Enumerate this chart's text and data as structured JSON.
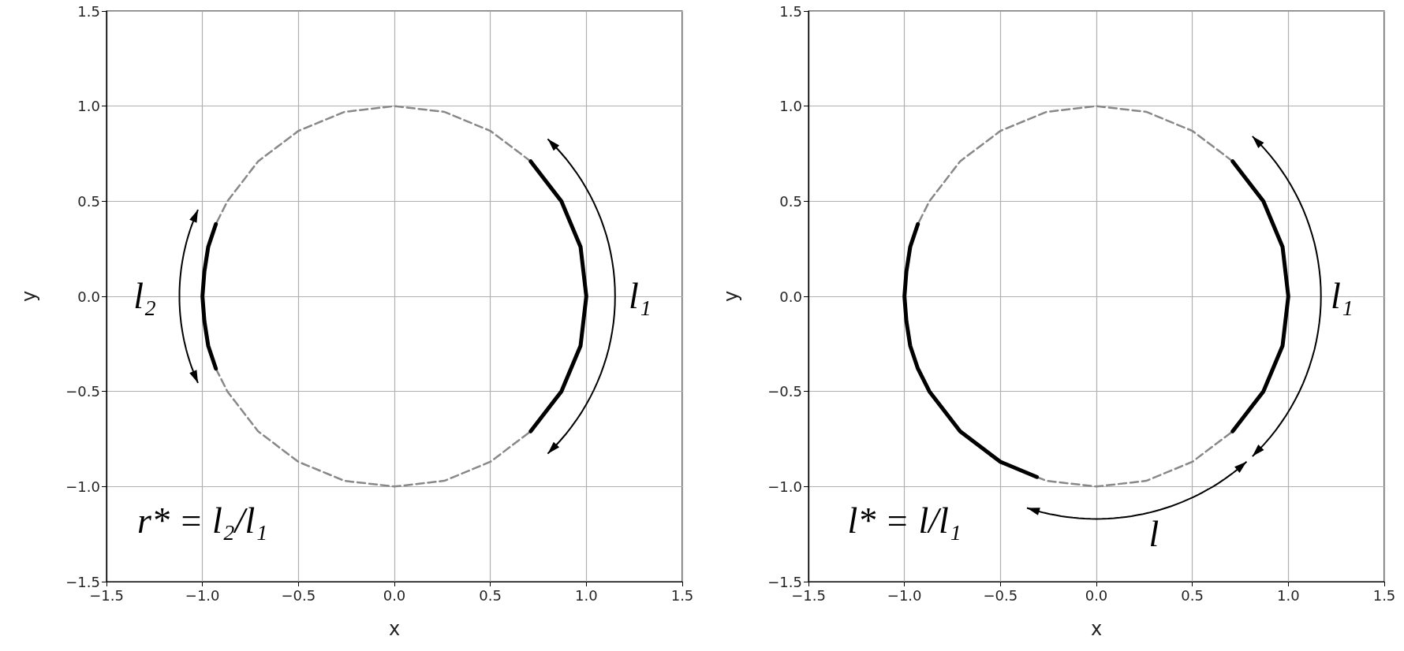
{
  "chart_data": [
    {
      "type": "line",
      "xlabel": "x",
      "ylabel": "y",
      "xlim": [
        -1.5,
        1.5
      ],
      "ylim": [
        -1.5,
        1.5
      ],
      "xticks": [
        {
          "value": -1.5,
          "label": "−1.5"
        },
        {
          "value": -1,
          "label": "−1.0"
        },
        {
          "value": -0.5,
          "label": "−0.5"
        },
        {
          "value": 0,
          "label": "0.0"
        },
        {
          "value": 0.5,
          "label": "0.5"
        },
        {
          "value": 1,
          "label": "1.0"
        },
        {
          "value": 1.5,
          "label": "1.5"
        }
      ],
      "yticks": [
        {
          "value": -1.5,
          "label": "−1.5"
        },
        {
          "value": -1,
          "label": "−1.0"
        },
        {
          "value": -0.5,
          "label": "−0.5"
        },
        {
          "value": 0,
          "label": "0.0"
        },
        {
          "value": 0.5,
          "label": "0.5"
        },
        {
          "value": 1,
          "label": "1.0"
        },
        {
          "value": 1.5,
          "label": "1.5"
        }
      ],
      "grid": true,
      "marker": "none",
      "series": [
        {
          "color": "#888888",
          "line_style": "dashed",
          "x": [
            0.71,
            0.5,
            0.26,
            0,
            -0.26,
            -0.5,
            -0.71,
            -0.87,
            -0.93
          ],
          "values": [
            0.71,
            0.87,
            0.97,
            1,
            0.97,
            0.87,
            0.71,
            0.5,
            0.38
          ]
        },
        {
          "color": "#888888",
          "line_style": "dashed",
          "x": [
            -0.93,
            -0.87,
            -0.71,
            -0.5,
            -0.26,
            0,
            0.26,
            0.5,
            0.71
          ],
          "values": [
            -0.38,
            -0.5,
            -0.71,
            -0.87,
            -0.97,
            -1,
            -0.97,
            -0.87,
            -0.71
          ]
        },
        {
          "color": "#000000",
          "line_style": "solid",
          "x": [
            0.71,
            0.87,
            0.97,
            1,
            0.97,
            0.87,
            0.71
          ],
          "values": [
            -0.71,
            -0.5,
            -0.26,
            0,
            0.26,
            0.5,
            0.71
          ]
        },
        {
          "color": "#000000",
          "line_style": "solid",
          "x": [
            -0.93,
            -0.97,
            -0.99,
            -1,
            -0.99,
            -0.97,
            -0.93
          ],
          "values": [
            0.38,
            0.26,
            0.13,
            0,
            -0.13,
            -0.26,
            -0.38
          ]
        }
      ],
      "annotations": [
        "l₂",
        "l₁",
        "r* = l₂/l₁"
      ]
    },
    {
      "type": "line",
      "xlabel": "x",
      "ylabel": "y",
      "xlim": [
        -1.5,
        1.5
      ],
      "ylim": [
        -1.5,
        1.5
      ],
      "xticks": [
        {
          "value": -1.5,
          "label": "−1.5"
        },
        {
          "value": -1,
          "label": "−1.0"
        },
        {
          "value": -0.5,
          "label": "−0.5"
        },
        {
          "value": 0,
          "label": "0.0"
        },
        {
          "value": 0.5,
          "label": "0.5"
        },
        {
          "value": 1,
          "label": "1.0"
        },
        {
          "value": 1.5,
          "label": "1.5"
        }
      ],
      "yticks": [
        {
          "value": -1.5,
          "label": "−1.5"
        },
        {
          "value": -1,
          "label": "−1.0"
        },
        {
          "value": -0.5,
          "label": "−0.5"
        },
        {
          "value": 0,
          "label": "0.0"
        },
        {
          "value": 0.5,
          "label": "0.5"
        },
        {
          "value": 1,
          "label": "1.0"
        },
        {
          "value": 1.5,
          "label": "1.5"
        }
      ],
      "grid": true,
      "marker": "none",
      "series": [
        {
          "color": "#888888",
          "line_style": "dashed",
          "x": [
            0.71,
            0.5,
            0.26,
            0,
            -0.26,
            -0.5,
            -0.71,
            -0.87,
            -0.93
          ],
          "values": [
            0.71,
            0.87,
            0.97,
            1,
            0.97,
            0.87,
            0.71,
            0.5,
            0.38
          ]
        },
        {
          "color": "#888888",
          "line_style": "dashed",
          "x": [
            -0.31,
            -0.26,
            0,
            0.26,
            0.5,
            0.71
          ],
          "values": [
            -0.95,
            -0.97,
            -1,
            -0.97,
            -0.87,
            -0.71
          ]
        },
        {
          "color": "#000000",
          "line_style": "solid",
          "x": [
            0.71,
            0.87,
            0.97,
            1,
            0.97,
            0.87,
            0.71
          ],
          "values": [
            -0.71,
            -0.5,
            -0.26,
            0,
            0.26,
            0.5,
            0.71
          ]
        },
        {
          "color": "#000000",
          "line_style": "solid",
          "x": [
            -0.93,
            -0.97,
            -0.99,
            -1,
            -0.99,
            -0.97,
            -0.93,
            -0.87,
            -0.71,
            -0.5,
            -0.31
          ],
          "values": [
            0.38,
            0.26,
            0.13,
            0,
            -0.13,
            -0.26,
            -0.38,
            -0.5,
            -0.71,
            -0.87,
            -0.95
          ]
        }
      ],
      "annotations": [
        "l₁",
        "l",
        "l* = l/l₁"
      ]
    }
  ]
}
